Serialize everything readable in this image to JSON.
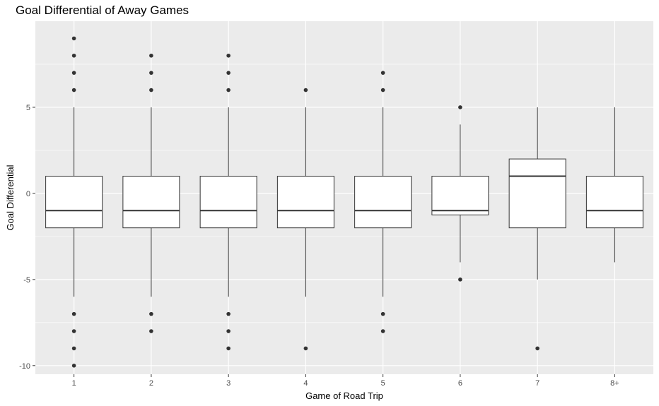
{
  "chart_data": {
    "type": "box",
    "title": "Goal Differential of Away Games",
    "xlabel": "Game of Road Trip",
    "ylabel": "Goal Differential",
    "categories": [
      "1",
      "2",
      "3",
      "4",
      "5",
      "6",
      "7",
      "8+"
    ],
    "ylim": [
      -10.5,
      10
    ],
    "yticks": [
      -10,
      -5,
      0,
      5
    ],
    "grid": true,
    "boxes": [
      {
        "category": "1",
        "lower_whisker": -6,
        "q1": -2,
        "median": -1,
        "q3": 1,
        "upper_whisker": 5,
        "outliers": [
          9,
          8,
          7,
          6,
          -7,
          -8,
          -9,
          -10
        ]
      },
      {
        "category": "2",
        "lower_whisker": -6,
        "q1": -2,
        "median": -1,
        "q3": 1,
        "upper_whisker": 5,
        "outliers": [
          8,
          7,
          6,
          -7,
          -8
        ]
      },
      {
        "category": "3",
        "lower_whisker": -6,
        "q1": -2,
        "median": -1,
        "q3": 1,
        "upper_whisker": 5,
        "outliers": [
          8,
          7,
          6,
          -7,
          -8,
          -9
        ]
      },
      {
        "category": "4",
        "lower_whisker": -6,
        "q1": -2,
        "median": -1,
        "q3": 1,
        "upper_whisker": 5,
        "outliers": [
          6,
          -9
        ]
      },
      {
        "category": "5",
        "lower_whisker": -6,
        "q1": -2,
        "median": -1,
        "q3": 1,
        "upper_whisker": 5,
        "outliers": [
          7,
          6,
          -7,
          -8
        ]
      },
      {
        "category": "6",
        "lower_whisker": -4,
        "q1": -1.25,
        "median": -1,
        "q3": 1,
        "upper_whisker": 4,
        "outliers": [
          5,
          -5
        ]
      },
      {
        "category": "7",
        "lower_whisker": -5,
        "q1": -2,
        "median": 1,
        "q3": 2,
        "upper_whisker": 5,
        "outliers": [
          -9
        ]
      },
      {
        "category": "8+",
        "lower_whisker": -4,
        "q1": -2,
        "median": -1,
        "q3": 1,
        "upper_whisker": 5,
        "outliers": []
      }
    ],
    "colors": {
      "panel_background": "#ebebeb",
      "grid": "#ffffff",
      "box_fill": "#ffffff",
      "box_stroke": "#333333",
      "outlier": "#333333"
    }
  }
}
